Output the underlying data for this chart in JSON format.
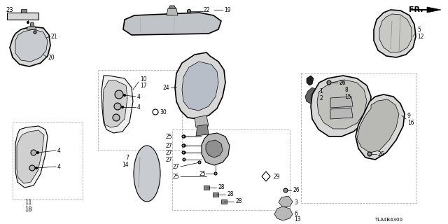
{
  "background_color": "#ffffff",
  "line_color": "#000000",
  "gray_fill": "#d8d8d8",
  "gray_mid": "#b8b8b8",
  "gray_dark": "#888888",
  "gray_light": "#eeeeee",
  "part_number": "TLA4B4300",
  "figsize": [
    6.4,
    3.2
  ],
  "dpi": 100
}
